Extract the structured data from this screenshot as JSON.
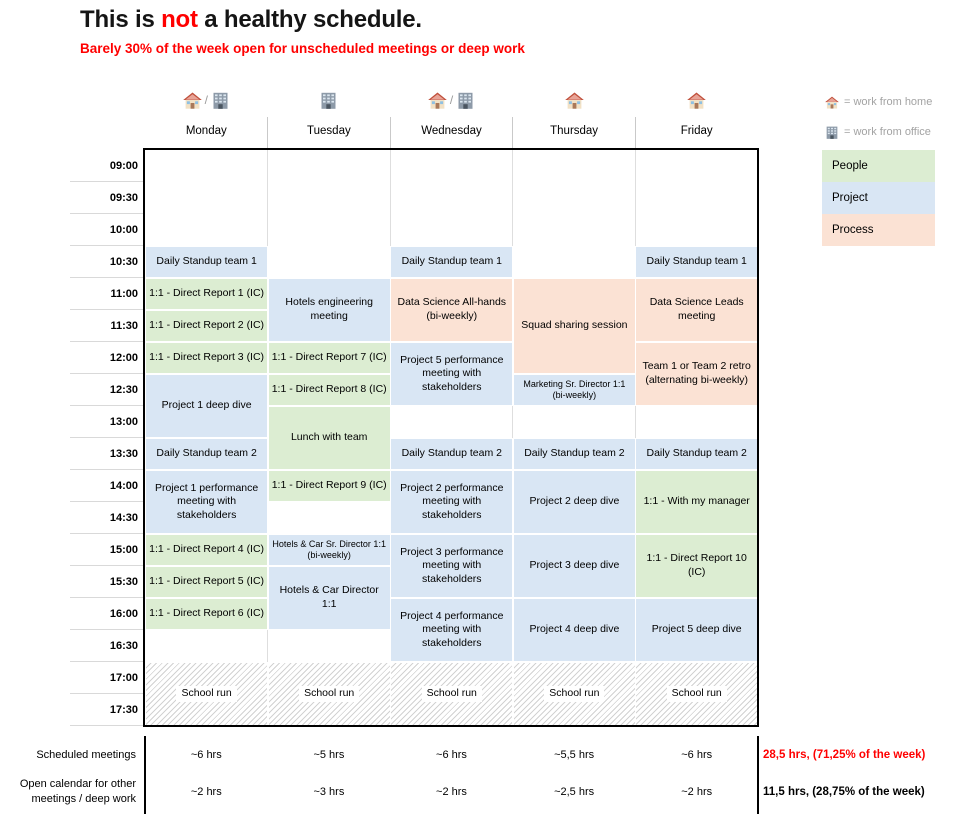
{
  "title": {
    "prefix": "This is ",
    "highlight": "not",
    "suffix": " a healthy schedule."
  },
  "subtitle": "Barely 30% of the week open for unscheduled meetings or deep work",
  "colors": {
    "people": "#dcedd2",
    "project": "#d9e6f4",
    "process": "#fbe2d4",
    "accent_red": "#ff0000"
  },
  "times": [
    "09:00",
    "09:30",
    "10:00",
    "10:30",
    "11:00",
    "11:30",
    "12:00",
    "12:30",
    "13:00",
    "13:30",
    "14:00",
    "14:30",
    "15:00",
    "15:30",
    "16:00",
    "16:30",
    "17:00",
    "17:30"
  ],
  "days": [
    {
      "label": "Monday",
      "icons": [
        "house",
        "office"
      ]
    },
    {
      "label": "Tuesday",
      "icons": [
        "office"
      ]
    },
    {
      "label": "Wednesday",
      "icons": [
        "house",
        "office"
      ]
    },
    {
      "label": "Thursday",
      "icons": [
        "house"
      ]
    },
    {
      "label": "Friday",
      "icons": [
        "house"
      ]
    }
  ],
  "legend": {
    "wfh": [
      {
        "icon": "house",
        "label": "= work from home"
      },
      {
        "icon": "office",
        "label": "= work from office"
      }
    ],
    "categories": [
      {
        "key": "people",
        "label": "People"
      },
      {
        "key": "project",
        "label": "Project"
      },
      {
        "key": "process",
        "label": "Process"
      }
    ]
  },
  "events": [
    {
      "day": 0,
      "start": 3,
      "span": 1,
      "category": "project",
      "label": "Daily Standup team 1"
    },
    {
      "day": 0,
      "start": 4,
      "span": 1,
      "category": "people",
      "label": "1:1 - Direct Report 1 (IC)"
    },
    {
      "day": 0,
      "start": 5,
      "span": 1,
      "category": "people",
      "label": "1:1 - Direct Report 2 (IC)"
    },
    {
      "day": 0,
      "start": 6,
      "span": 1,
      "category": "people",
      "label": "1:1 - Direct Report 3 (IC)"
    },
    {
      "day": 0,
      "start": 7,
      "span": 2,
      "category": "project",
      "label": "Project 1 deep dive"
    },
    {
      "day": 0,
      "start": 9,
      "span": 1,
      "category": "project",
      "label": "Daily Standup team 2"
    },
    {
      "day": 0,
      "start": 10,
      "span": 2,
      "category": "project",
      "label": "Project 1 performance meeting with stakeholders"
    },
    {
      "day": 0,
      "start": 12,
      "span": 1,
      "category": "people",
      "label": "1:1 - Direct Report 4 (IC)"
    },
    {
      "day": 0,
      "start": 13,
      "span": 1,
      "category": "people",
      "label": "1:1 - Direct Report 5 (IC)"
    },
    {
      "day": 0,
      "start": 14,
      "span": 1,
      "category": "people",
      "label": "1:1 - Direct Report 6 (IC)"
    },
    {
      "day": 0,
      "start": 16,
      "span": 2,
      "category": "school",
      "label": "School run"
    },
    {
      "day": 1,
      "start": 4,
      "span": 2,
      "category": "project",
      "label": "Hotels engineering meeting"
    },
    {
      "day": 1,
      "start": 6,
      "span": 1,
      "category": "people",
      "label": "1:1 - Direct Report 7 (IC)"
    },
    {
      "day": 1,
      "start": 7,
      "span": 1,
      "category": "people",
      "label": "1:1 - Direct Report 8 (IC)"
    },
    {
      "day": 1,
      "start": 8,
      "span": 2,
      "category": "people",
      "label": "Lunch with team"
    },
    {
      "day": 1,
      "start": 10,
      "span": 1,
      "category": "people",
      "label": "1:1 - Direct Report 9 (IC)"
    },
    {
      "day": 1,
      "start": 12,
      "span": 1,
      "category": "project",
      "label": "Hotels & Car Sr. Director 1:1 (bi-weekly)",
      "small": true
    },
    {
      "day": 1,
      "start": 13,
      "span": 2,
      "category": "project",
      "label": "Hotels & Car Director 1:1"
    },
    {
      "day": 1,
      "start": 16,
      "span": 2,
      "category": "school",
      "label": "School run"
    },
    {
      "day": 2,
      "start": 3,
      "span": 1,
      "category": "project",
      "label": "Daily Standup team 1"
    },
    {
      "day": 2,
      "start": 4,
      "span": 2,
      "category": "process",
      "label": "Data Science All-hands (bi-weekly)"
    },
    {
      "day": 2,
      "start": 6,
      "span": 2,
      "category": "project",
      "label": "Project 5 performance meeting with stakeholders"
    },
    {
      "day": 2,
      "start": 9,
      "span": 1,
      "category": "project",
      "label": "Daily Standup team 2"
    },
    {
      "day": 2,
      "start": 10,
      "span": 2,
      "category": "project",
      "label": "Project 2 performance meeting with stakeholders"
    },
    {
      "day": 2,
      "start": 12,
      "span": 2,
      "category": "project",
      "label": "Project 3 performance meeting with stakeholders"
    },
    {
      "day": 2,
      "start": 14,
      "span": 2,
      "category": "project",
      "label": "Project 4 performance meeting with stakeholders"
    },
    {
      "day": 2,
      "start": 16,
      "span": 2,
      "category": "school",
      "label": "School run"
    },
    {
      "day": 3,
      "start": 4,
      "span": 3,
      "category": "process",
      "label": "Squad sharing session"
    },
    {
      "day": 3,
      "start": 7,
      "span": 1,
      "category": "project",
      "label": "Marketing Sr. Director 1:1 (bi-weekly)",
      "small": true
    },
    {
      "day": 3,
      "start": 9,
      "span": 1,
      "category": "project",
      "label": "Daily Standup team 2"
    },
    {
      "day": 3,
      "start": 10,
      "span": 2,
      "category": "project",
      "label": "Project 2 deep dive"
    },
    {
      "day": 3,
      "start": 12,
      "span": 2,
      "category": "project",
      "label": "Project 3 deep dive"
    },
    {
      "day": 3,
      "start": 14,
      "span": 2,
      "category": "project",
      "label": "Project 4 deep dive"
    },
    {
      "day": 3,
      "start": 16,
      "span": 2,
      "category": "school",
      "label": "School run"
    },
    {
      "day": 4,
      "start": 3,
      "span": 1,
      "category": "project",
      "label": "Daily Standup team 1"
    },
    {
      "day": 4,
      "start": 4,
      "span": 2,
      "category": "process",
      "label": "Data Science Leads meeting"
    },
    {
      "day": 4,
      "start": 6,
      "span": 2,
      "category": "process",
      "label": "Team 1 or Team 2 retro (alternating bi-weekly)"
    },
    {
      "day": 4,
      "start": 9,
      "span": 1,
      "category": "project",
      "label": "Daily Standup team 2"
    },
    {
      "day": 4,
      "start": 10,
      "span": 2,
      "category": "people",
      "label": "1:1 - With my manager"
    },
    {
      "day": 4,
      "start": 12,
      "span": 2,
      "category": "people",
      "label": "1:1 - Direct Report 10 (IC)"
    },
    {
      "day": 4,
      "start": 14,
      "span": 2,
      "category": "project",
      "label": "Project 5 deep dive"
    },
    {
      "day": 4,
      "start": 16,
      "span": 2,
      "category": "school",
      "label": "School run"
    }
  ],
  "summary": {
    "rows": [
      {
        "label": "Scheduled meetings",
        "values": [
          "~6 hrs",
          "~5 hrs",
          "~6 hrs",
          "~5,5 hrs",
          "~6 hrs"
        ],
        "total": "28,5 hrs, (71,25% of the week)",
        "total_color": "red"
      },
      {
        "label": "Open calendar for other meetings / deep work",
        "values": [
          "~2 hrs",
          "~3 hrs",
          "~2 hrs",
          "~2,5 hrs",
          "~2 hrs"
        ],
        "total": "11,5 hrs, (28,75% of the week)",
        "total_color": "black"
      }
    ]
  }
}
